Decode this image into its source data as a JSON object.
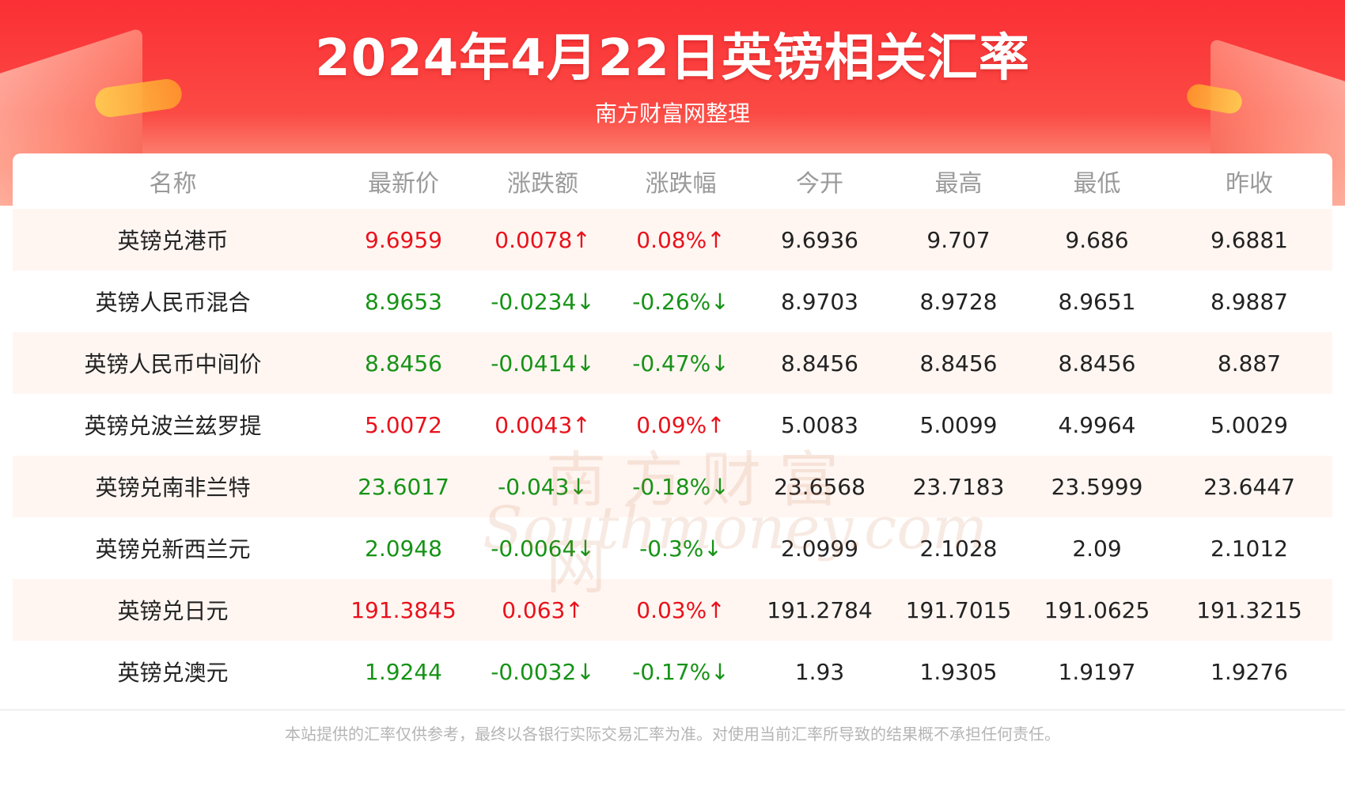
{
  "header": {
    "title": "2024年4月22日英镑相关汇率",
    "subtitle": "南方财富网整理"
  },
  "table": {
    "columns": [
      "名称",
      "最新价",
      "涨跌额",
      "涨跌幅",
      "今开",
      "最高",
      "最低",
      "昨收"
    ],
    "rows": [
      {
        "name": "英镑兑港币",
        "latest": "9.6959",
        "change": "0.0078↑",
        "pct": "0.08%↑",
        "open": "9.6936",
        "high": "9.707",
        "low": "9.686",
        "prev": "9.6881",
        "direction": "up"
      },
      {
        "name": "英镑人民币混合",
        "latest": "8.9653",
        "change": "-0.0234↓",
        "pct": "-0.26%↓",
        "open": "8.9703",
        "high": "8.9728",
        "low": "8.9651",
        "prev": "8.9887",
        "direction": "down"
      },
      {
        "name": "英镑人民币中间价",
        "latest": "8.8456",
        "change": "-0.0414↓",
        "pct": "-0.47%↓",
        "open": "8.8456",
        "high": "8.8456",
        "low": "8.8456",
        "prev": "8.887",
        "direction": "down"
      },
      {
        "name": "英镑兑波兰兹罗提",
        "latest": "5.0072",
        "change": "0.0043↑",
        "pct": "0.09%↑",
        "open": "5.0083",
        "high": "5.0099",
        "low": "4.9964",
        "prev": "5.0029",
        "direction": "up"
      },
      {
        "name": "英镑兑南非兰特",
        "latest": "23.6017",
        "change": "-0.043↓",
        "pct": "-0.18%↓",
        "open": "23.6568",
        "high": "23.7183",
        "low": "23.5999",
        "prev": "23.6447",
        "direction": "down"
      },
      {
        "name": "英镑兑新西兰元",
        "latest": "2.0948",
        "change": "-0.0064↓",
        "pct": "-0.3%↓",
        "open": "2.0999",
        "high": "2.1028",
        "low": "2.09",
        "prev": "2.1012",
        "direction": "down"
      },
      {
        "name": "英镑兑日元",
        "latest": "191.3845",
        "change": "0.063↑",
        "pct": "0.03%↑",
        "open": "191.2784",
        "high": "191.7015",
        "low": "191.0625",
        "prev": "191.3215",
        "direction": "up"
      },
      {
        "name": "英镑兑澳元",
        "latest": "1.9244",
        "change": "-0.0032↓",
        "pct": "-0.17%↓",
        "open": "1.93",
        "high": "1.9305",
        "low": "1.9197",
        "prev": "1.9276",
        "direction": "down"
      }
    ]
  },
  "watermark": {
    "cn": "南方财富网",
    "en": "Southmoney.com"
  },
  "footer": {
    "disclaimer": "本站提供的汇率仅供参考，最终以各银行实际交易汇率为准。对使用当前汇率所导致的结果概不承担任何责任。"
  },
  "colors": {
    "header_red": "#fb2f35",
    "up_red": "#e8121c",
    "down_green": "#169316",
    "row_alt": "#fff6f2",
    "header_text_gray": "#9a9a9a"
  }
}
